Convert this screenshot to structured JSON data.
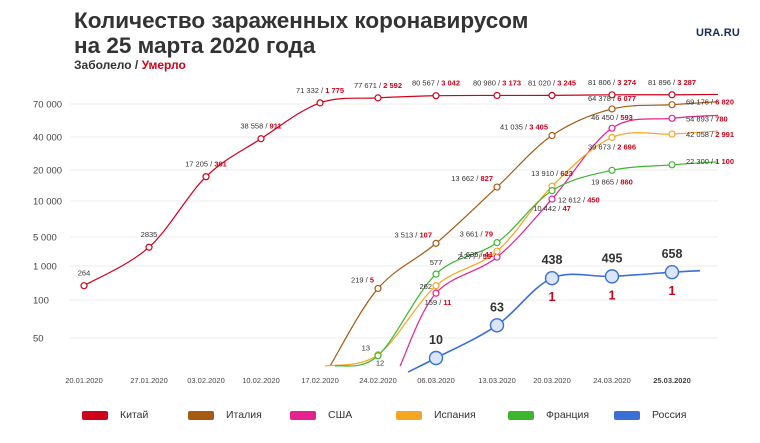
{
  "header": {
    "title": "Количество зараженных коронавирусом на 25 марта 2020 года",
    "subtitle_cases": "Заболело",
    "subtitle_sep": " / ",
    "subtitle_deaths": "Умерло",
    "logo": "URA.RU"
  },
  "colors": {
    "deaths_text": "#d0021b",
    "grid": "#dddddd",
    "axis_text": "#444444"
  },
  "chart_data": {
    "type": "line",
    "title": "Количество зараженных коронавирусом на 25 марта 2020 года",
    "y_scale": "custom-log",
    "y_ticks": [
      {
        "label": "70 000",
        "value": 70000
      },
      {
        "label": "40 000",
        "value": 40000
      },
      {
        "label": "20 000",
        "value": 20000
      },
      {
        "label": "10 000",
        "value": 10000
      },
      {
        "label": "5 000",
        "value": 5000
      },
      {
        "label": "1 000",
        "value": 1000
      },
      {
        "label": "100",
        "value": 100
      },
      {
        "label": "50",
        "value": 50
      }
    ],
    "x_ticks": [
      "20.01.2020",
      "27.01.2020",
      "03.02.2020",
      "10.02.2020",
      "17.02.2020",
      "24.02.2020",
      "06.03.2020",
      "13.03.2020",
      "20.03.2020",
      "24.03.2020",
      "25.03.2020"
    ],
    "grid": "horizontal",
    "series": [
      {
        "name": "Китай",
        "color": "#d0021b",
        "points": [
          {
            "x": "20.01.2020",
            "cases": 264,
            "label": "264"
          },
          {
            "x": "27.01.2020",
            "cases": 2835,
            "label": "2835"
          },
          {
            "x": "03.02.2020",
            "cases": 17205,
            "label": "17 205",
            "deaths_label": "361"
          },
          {
            "x": "10.02.2020",
            "cases": 38558,
            "label": "38 558",
            "deaths_label": "911"
          },
          {
            "x": "17.02.2020",
            "cases": 71332,
            "label": "71 332",
            "deaths_label": "1 775"
          },
          {
            "x": "24.02.2020",
            "cases": 77671,
            "label": "77 671",
            "deaths_label": "2 592"
          },
          {
            "x": "06.03.2020",
            "cases": 80567,
            "label": "80 567",
            "deaths_label": "3 042"
          },
          {
            "x": "13.03.2020",
            "cases": 80980,
            "label": "80 980",
            "deaths_label": "3 173"
          },
          {
            "x": "20.03.2020",
            "cases": 81020,
            "label": "81 020",
            "deaths_label": "3 245"
          },
          {
            "x": "24.03.2020",
            "cases": 81806,
            "label": "81 806",
            "deaths_label": "3 274"
          },
          {
            "x": "25.03.2020",
            "cases": 81896,
            "label": "81 896",
            "deaths_label": "3 287"
          }
        ]
      },
      {
        "name": "Италия",
        "color": "#a65a12",
        "points": [
          {
            "x": "24.02.2020",
            "cases": 219,
            "label": "219",
            "deaths_label": "5"
          },
          {
            "x": "06.03.2020",
            "cases": 3513,
            "label": "3 513",
            "deaths_label": "107"
          },
          {
            "x": "13.03.2020",
            "cases": 13662,
            "label": "13 662",
            "deaths_label": "827"
          },
          {
            "x": "20.03.2020",
            "cases": 41035,
            "label": "41 035",
            "deaths_label": "3 405"
          },
          {
            "x": "24.03.2020",
            "cases": 64378,
            "label": "64 378",
            "deaths_label": "6 077"
          },
          {
            "x": "25.03.2020",
            "cases": 69176,
            "label": "69 176",
            "deaths_label": "6 820"
          }
        ]
      },
      {
        "name": "США",
        "color": "#e5208f",
        "points": [
          {
            "x": "06.03.2020",
            "cases": 159,
            "label": "159",
            "deaths_label": "11"
          },
          {
            "x": "13.03.2020",
            "cases": 1635,
            "label": "1 635",
            "deaths_label": "41"
          },
          {
            "x": "20.03.2020",
            "cases": 10442,
            "label": "10 442",
            "deaths_label": "47"
          },
          {
            "x": "24.03.2020",
            "cases": 46450,
            "label": "46 450",
            "deaths_label": "593"
          },
          {
            "x": "25.03.2020",
            "cases": 54893,
            "label": "54 893",
            "deaths_label": "780"
          }
        ]
      },
      {
        "name": "Испания",
        "color": "#f5a623",
        "points": [
          {
            "x": "24.02.2020",
            "cases": 13,
            "label": "13"
          },
          {
            "x": "06.03.2020",
            "cases": 262,
            "label": "262"
          },
          {
            "x": "13.03.2020",
            "cases": 2277,
            "label": "2 277",
            "deaths_label": "55"
          },
          {
            "x": "20.03.2020",
            "cases": 13910,
            "label": "13 910",
            "deaths_label": "623"
          },
          {
            "x": "24.03.2020",
            "cases": 39673,
            "label": "39 673",
            "deaths_label": "2 696"
          },
          {
            "x": "25.03.2020",
            "cases": 42058,
            "label": "42 058",
            "deaths_label": "2 991"
          }
        ]
      },
      {
        "name": "Франция",
        "color": "#3cb62e",
        "points": [
          {
            "x": "24.02.2020",
            "cases": 12,
            "label": "12"
          },
          {
            "x": "06.03.2020",
            "cases": 577,
            "label": "577"
          },
          {
            "x": "13.03.2020",
            "cases": 3661,
            "label": "3 661",
            "deaths_label": "79"
          },
          {
            "x": "20.03.2020",
            "cases": 12612,
            "label": "12 612",
            "deaths_label": "450"
          },
          {
            "x": "24.03.2020",
            "cases": 19865,
            "label": "19 865",
            "deaths_label": "860"
          },
          {
            "x": "25.03.2020",
            "cases": 22300,
            "label": "22 300",
            "deaths_label": "1 100"
          }
        ]
      },
      {
        "name": "Россия",
        "color": "#3b6fd6",
        "points": [
          {
            "x": "06.03.2020",
            "cases": 10,
            "label": "10"
          },
          {
            "x": "13.03.2020",
            "cases": 63,
            "label": "63"
          },
          {
            "x": "20.03.2020",
            "cases": 438,
            "label": "438",
            "deaths_label": "1"
          },
          {
            "x": "24.03.2020",
            "cases": 495,
            "label": "495",
            "deaths_label": "1"
          },
          {
            "x": "25.03.2020",
            "cases": 658,
            "label": "658",
            "deaths_label": "1"
          }
        ]
      }
    ],
    "legend": [
      {
        "name": "Китай",
        "color": "#d0021b"
      },
      {
        "name": "Италия",
        "color": "#a65a12"
      },
      {
        "name": "США",
        "color": "#e5208f"
      },
      {
        "name": "Испания",
        "color": "#f5a623"
      },
      {
        "name": "Франция",
        "color": "#3cb62e"
      },
      {
        "name": "Россия",
        "color": "#3b6fd6"
      }
    ],
    "legend_position": "bottom"
  }
}
